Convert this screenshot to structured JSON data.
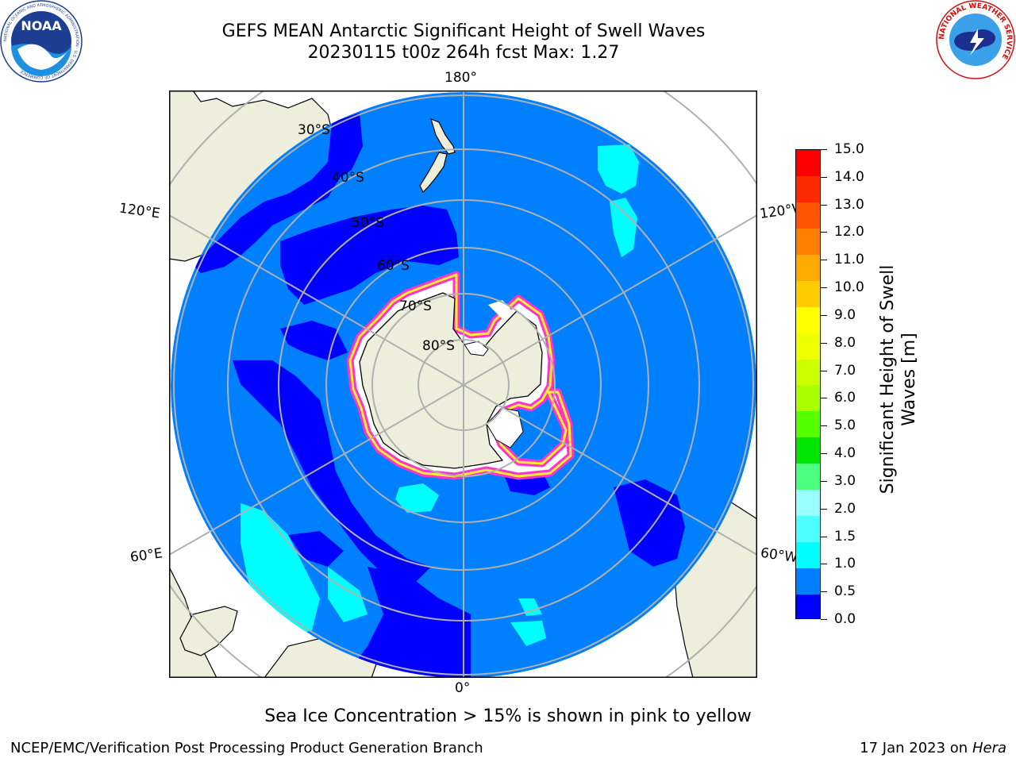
{
  "header": {
    "title_line1": "GEFS MEAN Antarctic Significant Height of Swell Waves",
    "title_line2": "20230115 t00z 264h fcst   Max: 1.27"
  },
  "logos": {
    "noaa": {
      "text": "NOAA",
      "ring_text": "NATIONAL OCEANIC AND ATMOSPHERIC ADMINISTRATION · U.S. DEPARTMENT OF COMMERCE"
    },
    "nws": {
      "ring_text": "NATIONAL WEATHER SERVICE"
    }
  },
  "map": {
    "projection": "south-polar-stereographic",
    "longitude_labels": [
      "180°",
      "120°E",
      "120°W",
      "60°E",
      "60°W",
      "0°"
    ],
    "latitude_labels": [
      "30°S",
      "40°S",
      "50°S",
      "60°S",
      "70°S",
      "80°S"
    ],
    "colors": {
      "land": "#eeeedd",
      "ocean_background": "#0080ff",
      "low_swell": "#0000ff",
      "grid": "#b0b0b0",
      "ice_edge": "#ff00ff"
    }
  },
  "colorbar": {
    "label": "Significant Height of Swell Waves [m]",
    "ticks": [
      "0.0",
      "0.5",
      "1.0",
      "1.5",
      "2.0",
      "3.0",
      "4.0",
      "5.0",
      "6.0",
      "7.0",
      "8.0",
      "9.0",
      "10.0",
      "11.0",
      "12.0",
      "13.0",
      "14.0",
      "15.0"
    ],
    "colors": [
      "#0000ff",
      "#0080ff",
      "#00ffff",
      "#4dffff",
      "#99ffff",
      "#4dff80",
      "#00e600",
      "#55ff00",
      "#aaff00",
      "#ccff00",
      "#eeff00",
      "#ffff00",
      "#ffcc00",
      "#ffaa00",
      "#ff8000",
      "#ff5500",
      "#ff2b00",
      "#ff0000"
    ]
  },
  "footer": {
    "note": "Sea Ice Concentration > 15% is shown in pink to yellow",
    "credit": "NCEP/EMC/Verification Post Processing Product Generation Branch",
    "date": "17 Jan 2023 on",
    "system": "Hera"
  }
}
